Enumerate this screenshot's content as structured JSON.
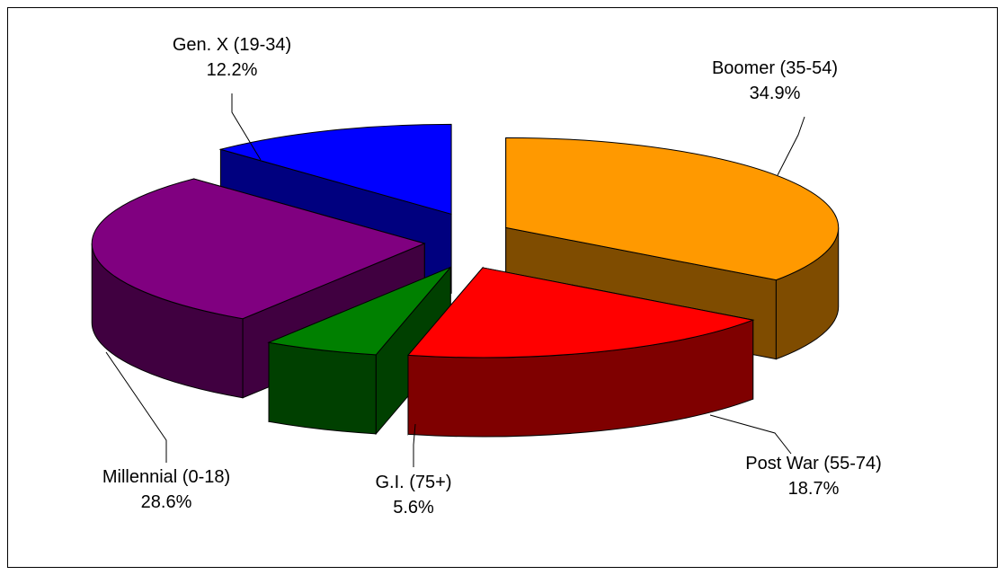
{
  "chart_data": {
    "type": "pie",
    "view": "3d-exploded",
    "categories": [
      "Boomer (35-54)",
      "Post War (55-74)",
      "G.I. (75+)",
      "Millennial (0-18)",
      "Gen. X (19-34)"
    ],
    "values": [
      34.9,
      18.7,
      5.6,
      28.6,
      12.2
    ],
    "value_labels": [
      "34.9%",
      "18.7%",
      "5.6%",
      "28.6%",
      "12.2%"
    ],
    "colors": [
      "#ff9900",
      "#ff0000",
      "#008000",
      "#800080",
      "#0000ff"
    ]
  }
}
